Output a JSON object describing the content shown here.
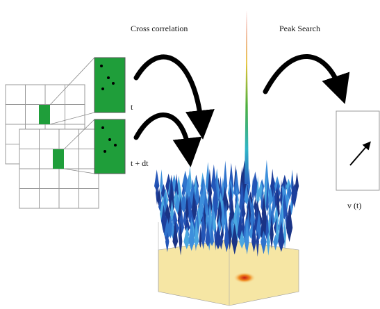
{
  "labels": {
    "cross_correlation": "Cross correlation",
    "peak_search": "Peak Search",
    "t": "t",
    "t_dt": "t + dt",
    "velocity": "v (t)"
  }
}
